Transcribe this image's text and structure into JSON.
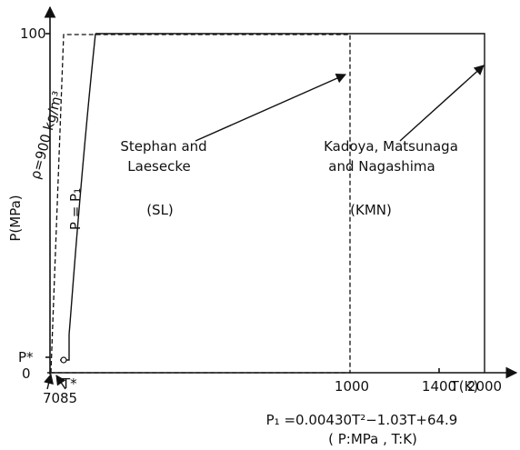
{
  "y_axis": {
    "label": "P(MPa)",
    "ticks": [
      "100",
      "P*",
      "0"
    ]
  },
  "x_axis": {
    "label": "T(K)",
    "ticks": [
      "70",
      "85",
      "1000",
      "1400",
      "2000"
    ],
    "marker": "T*"
  },
  "curves": {
    "density": "ρ=900 kg/m³",
    "melting": "P = P₁"
  },
  "regions": [
    {
      "lines": [
        "Stephan and",
        "Laesecke"
      ],
      "abbr": "(SL)"
    },
    {
      "lines": [
        "Kadoya, Matsunaga",
        "and Nagashima"
      ],
      "abbr": "(KMN)"
    }
  ],
  "equation": {
    "formula": "P₁ =0.00430T²−1.03T+64.9",
    "units": "( P:MPa , T:K)"
  }
}
